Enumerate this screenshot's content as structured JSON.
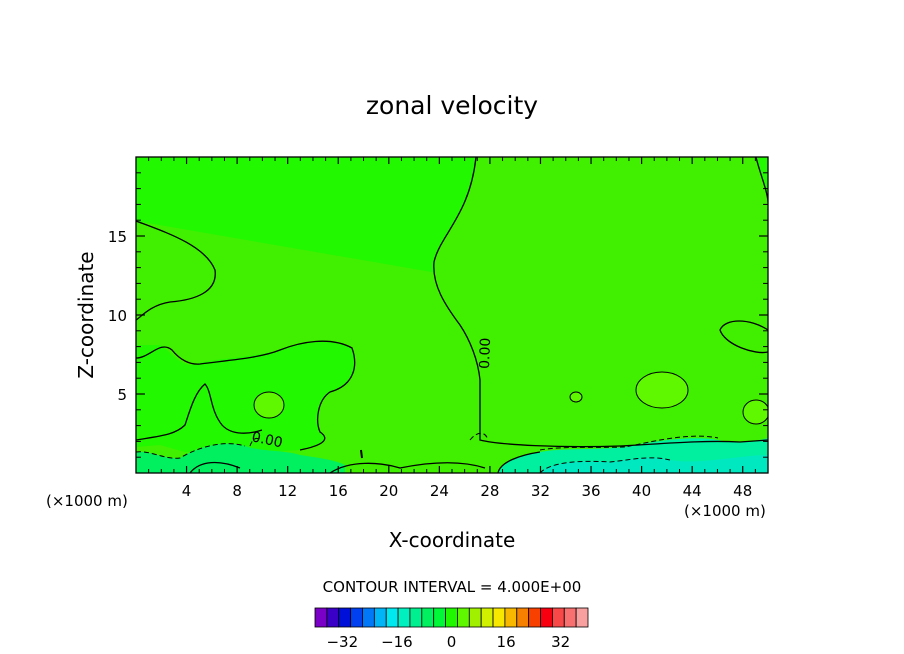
{
  "chart_data": {
    "type": "heatmap",
    "title": "zonal velocity",
    "xlabel": "X-coordinate",
    "ylabel": "Z-coordinate",
    "x_unit_left": "(×1000 m)",
    "x_unit_right": "(×1000 m)",
    "xlim": [
      0,
      50
    ],
    "ylim": [
      0,
      20
    ],
    "x_ticks": [
      4,
      8,
      12,
      16,
      20,
      24,
      28,
      32,
      36,
      40,
      44,
      48
    ],
    "x_tick_labels": [
      "4",
      "8",
      "12",
      "16",
      "20",
      "24",
      "28",
      "32",
      "36",
      "40",
      "44",
      "48"
    ],
    "y_ticks": [
      5,
      10,
      15
    ],
    "y_tick_labels": [
      "5",
      "10",
      "15"
    ],
    "contour_labels": [
      "0.00",
      "0.00"
    ],
    "contour_interval_text": "CONTOUR INTERVAL = 4.000E+00",
    "colorbar": {
      "min": -40,
      "max": 40,
      "step": 4,
      "tick_values": [
        -32,
        -16,
        0,
        16,
        32
      ],
      "tick_labels": [
        "−32",
        "−16",
        "0",
        "16",
        "32"
      ],
      "colors": [
        "#7a00c8",
        "#3a00c8",
        "#0010d8",
        "#0040f0",
        "#0078f8",
        "#00b4f8",
        "#00e8f0",
        "#00f0c0",
        "#00f090",
        "#00f060",
        "#00f838",
        "#20f800",
        "#60f800",
        "#a0f000",
        "#d0f000",
        "#f8e800",
        "#f8b800",
        "#f88000",
        "#f84000",
        "#f80010",
        "#f84848",
        "#f87070",
        "#f8a0a0"
      ]
    },
    "field_colors": {
      "base": "#22f800",
      "lower": "#40f000",
      "patch": "#60f800",
      "near_zero": "#00f060",
      "negative": "#00f0a0",
      "negative_deep": "#00e8c0"
    }
  }
}
